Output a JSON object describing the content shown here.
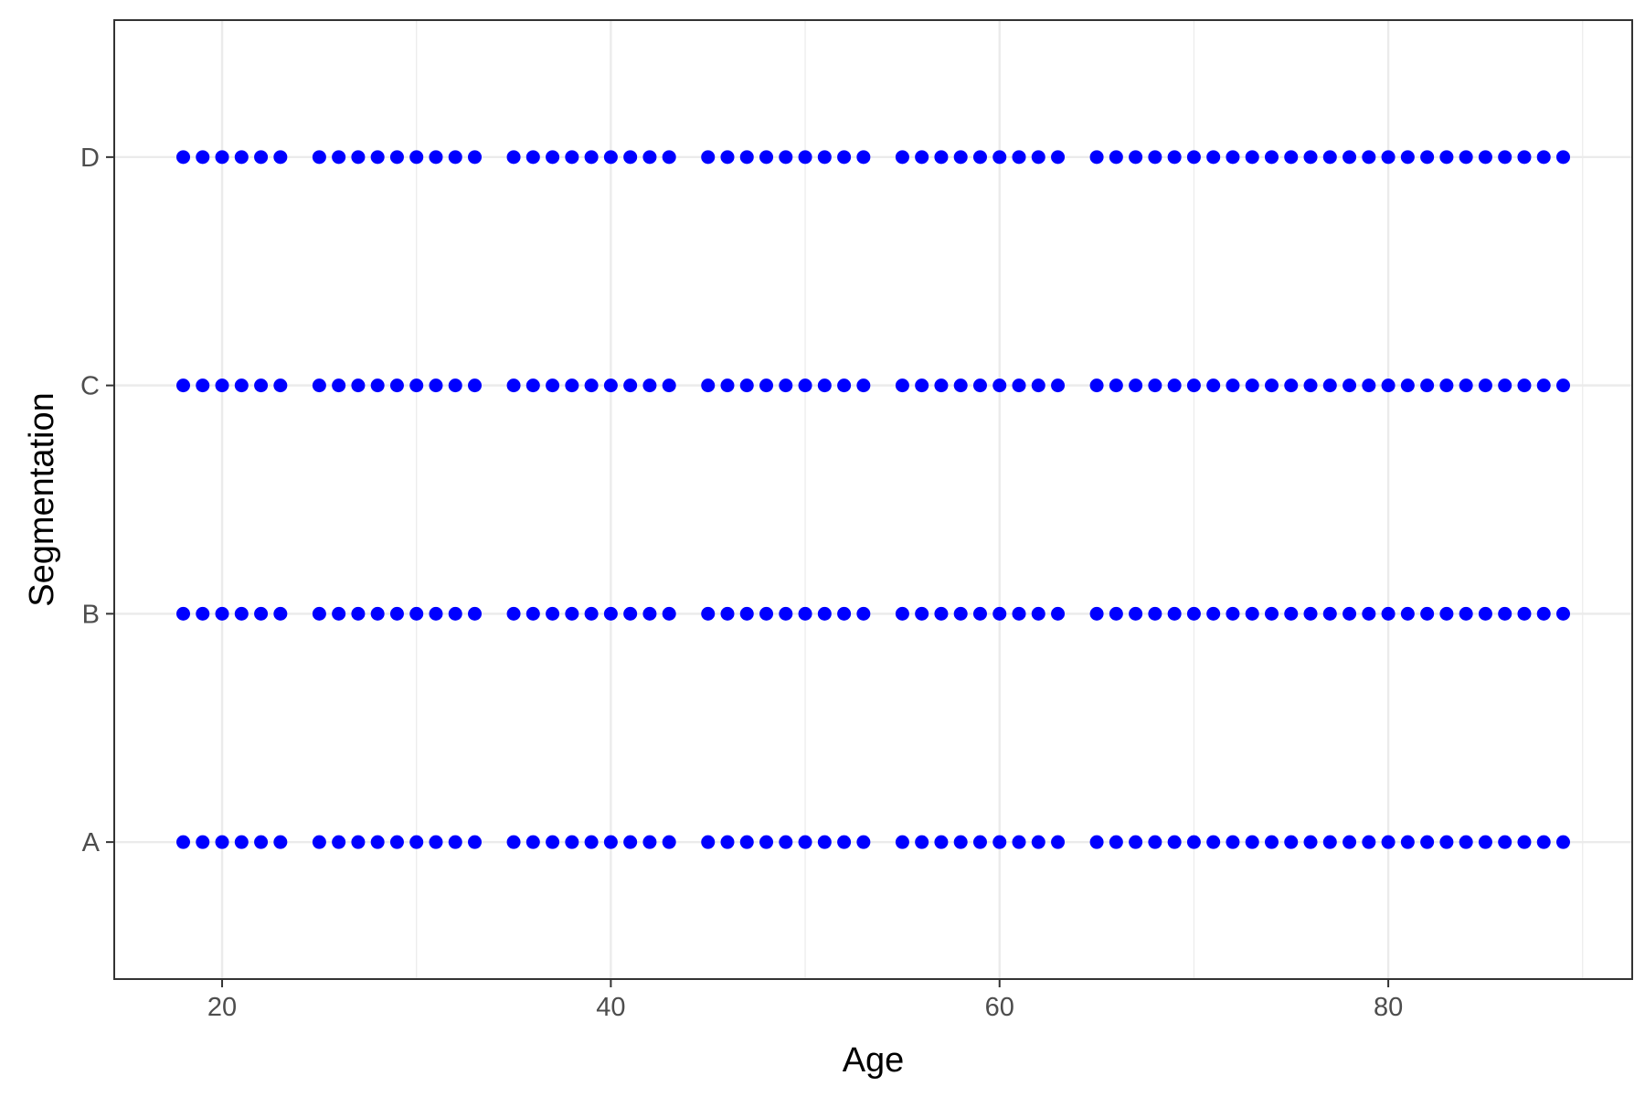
{
  "chart_data": {
    "type": "scatter",
    "title": "",
    "xlabel": "Age",
    "ylabel": "Segmentation",
    "xlim": [
      14.45,
      92.55
    ],
    "x_ticks": [
      20,
      40,
      60,
      80
    ],
    "x_tick_labels": [
      "20",
      "40",
      "60",
      "80"
    ],
    "categories": [
      "A",
      "B",
      "C",
      "D"
    ],
    "grid": true,
    "legend": "none",
    "point_color": "#0000FF",
    "x_values": [
      18,
      19,
      20,
      21,
      22,
      23,
      25,
      26,
      27,
      28,
      29,
      30,
      31,
      32,
      33,
      35,
      36,
      37,
      38,
      39,
      40,
      41,
      42,
      43,
      45,
      46,
      47,
      48,
      49,
      50,
      51,
      52,
      53,
      55,
      56,
      57,
      58,
      59,
      60,
      61,
      62,
      63,
      65,
      66,
      67,
      68,
      69,
      70,
      71,
      72,
      73,
      74,
      75,
      76,
      77,
      78,
      79,
      80,
      81,
      82,
      83,
      84,
      85,
      86,
      87,
      88,
      89
    ],
    "series": [
      {
        "name": "A",
        "values": [
          18,
          19,
          20,
          21,
          22,
          23,
          25,
          26,
          27,
          28,
          29,
          30,
          31,
          32,
          33,
          35,
          36,
          37,
          38,
          39,
          40,
          41,
          42,
          43,
          45,
          46,
          47,
          48,
          49,
          50,
          51,
          52,
          53,
          55,
          56,
          57,
          58,
          59,
          60,
          61,
          62,
          63,
          65,
          66,
          67,
          68,
          69,
          70,
          71,
          72,
          73,
          74,
          75,
          76,
          77,
          78,
          79,
          80,
          81,
          82,
          83,
          84,
          85,
          86,
          87,
          88,
          89
        ]
      },
      {
        "name": "B",
        "values": [
          18,
          19,
          20,
          21,
          22,
          23,
          25,
          26,
          27,
          28,
          29,
          30,
          31,
          32,
          33,
          35,
          36,
          37,
          38,
          39,
          40,
          41,
          42,
          43,
          45,
          46,
          47,
          48,
          49,
          50,
          51,
          52,
          53,
          55,
          56,
          57,
          58,
          59,
          60,
          61,
          62,
          63,
          65,
          66,
          67,
          68,
          69,
          70,
          71,
          72,
          73,
          74,
          75,
          76,
          77,
          78,
          79,
          80,
          81,
          82,
          83,
          84,
          85,
          86,
          87,
          88,
          89
        ]
      },
      {
        "name": "C",
        "values": [
          18,
          19,
          20,
          21,
          22,
          23,
          25,
          26,
          27,
          28,
          29,
          30,
          31,
          32,
          33,
          35,
          36,
          37,
          38,
          39,
          40,
          41,
          42,
          43,
          45,
          46,
          47,
          48,
          49,
          50,
          51,
          52,
          53,
          55,
          56,
          57,
          58,
          59,
          60,
          61,
          62,
          63,
          65,
          66,
          67,
          68,
          69,
          70,
          71,
          72,
          73,
          74,
          75,
          76,
          77,
          78,
          79,
          80,
          81,
          82,
          83,
          84,
          85,
          86,
          87,
          88,
          89
        ]
      },
      {
        "name": "D",
        "values": [
          18,
          19,
          20,
          21,
          22,
          23,
          25,
          26,
          27,
          28,
          29,
          30,
          31,
          32,
          33,
          35,
          36,
          37,
          38,
          39,
          40,
          41,
          42,
          43,
          45,
          46,
          47,
          48,
          49,
          50,
          51,
          52,
          53,
          55,
          56,
          57,
          58,
          59,
          60,
          61,
          62,
          63,
          65,
          66,
          67,
          68,
          69,
          70,
          71,
          72,
          73,
          74,
          75,
          76,
          77,
          78,
          79,
          80,
          81,
          82,
          83,
          84,
          85,
          86,
          87,
          88,
          89
        ]
      }
    ]
  }
}
